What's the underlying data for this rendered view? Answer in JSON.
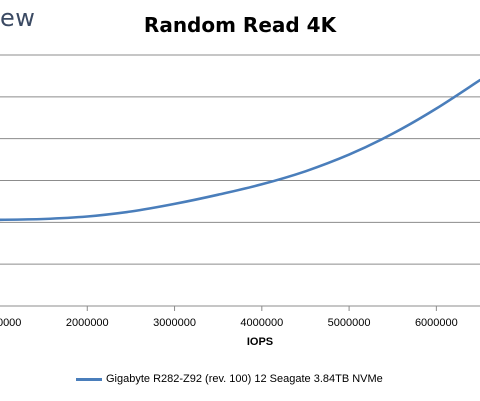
{
  "brand_fragment": "ew",
  "chart_data": {
    "type": "line",
    "title": "Random Read 4K",
    "xlabel": "IOPS",
    "ylabel": "",
    "xlim": [
      1000000,
      6500000
    ],
    "ylim": [
      0,
      6
    ],
    "grid": true,
    "legend_position": "bottom",
    "x_ticks": [
      "2000000",
      "3000000",
      "4000000",
      "5000000",
      "6000000"
    ],
    "series": [
      {
        "name": "Gigabyte R282-Z92 (rev. 100) 12 Seagate 3.84TB NVMe",
        "color": "#4a7ebb",
        "x": [
          1000000,
          1500000,
          2000000,
          2500000,
          3000000,
          3500000,
          4000000,
          4500000,
          5000000,
          5500000,
          6000000,
          6500000
        ],
        "y": [
          2.06,
          2.08,
          2.14,
          2.26,
          2.44,
          2.66,
          2.91,
          3.22,
          3.62,
          4.12,
          4.72,
          5.4
        ]
      }
    ]
  }
}
